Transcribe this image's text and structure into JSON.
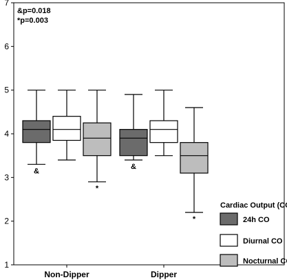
{
  "chart_data": {
    "type": "boxplot",
    "categories": [
      "Non-Dipper",
      "Dipper"
    ],
    "ylim": [
      1,
      7
    ],
    "yticks": [
      1,
      2,
      3,
      4,
      5,
      6,
      7
    ],
    "annotations": [
      "&p=0.018",
      "*p=0.003"
    ],
    "legend": {
      "title": "Cardiac Output (CO)",
      "placement": "bottom-right"
    },
    "series": [
      {
        "name": "24h CO",
        "color": "#6b6b6b",
        "boxes": [
          {
            "category": "Non-Dipper",
            "min": 3.3,
            "q1": 3.8,
            "median": 4.1,
            "q3": 4.3,
            "max": 5.0,
            "marker": "&"
          },
          {
            "category": "Dipper",
            "min": 3.4,
            "q1": 3.5,
            "median": 3.9,
            "q3": 4.1,
            "max": 4.9,
            "marker": "&"
          }
        ]
      },
      {
        "name": "Diurnal CO",
        "color": "#ffffff",
        "boxes": [
          {
            "category": "Non-Dipper",
            "min": 3.4,
            "q1": 3.85,
            "median": 4.1,
            "q3": 4.4,
            "max": 5.0,
            "marker": ""
          },
          {
            "category": "Dipper",
            "min": 3.5,
            "q1": 3.8,
            "median": 4.1,
            "q3": 4.3,
            "max": 5.0,
            "marker": ""
          }
        ]
      },
      {
        "name": "Nocturnal CO",
        "color": "#bdbdbd",
        "boxes": [
          {
            "category": "Non-Dipper",
            "min": 2.9,
            "q1": 3.5,
            "median": 3.9,
            "q3": 4.25,
            "max": 5.0,
            "marker": "*"
          },
          {
            "category": "Dipper",
            "min": 2.2,
            "q1": 3.1,
            "median": 3.5,
            "q3": 3.8,
            "max": 4.6,
            "marker": "*"
          }
        ]
      }
    ]
  }
}
